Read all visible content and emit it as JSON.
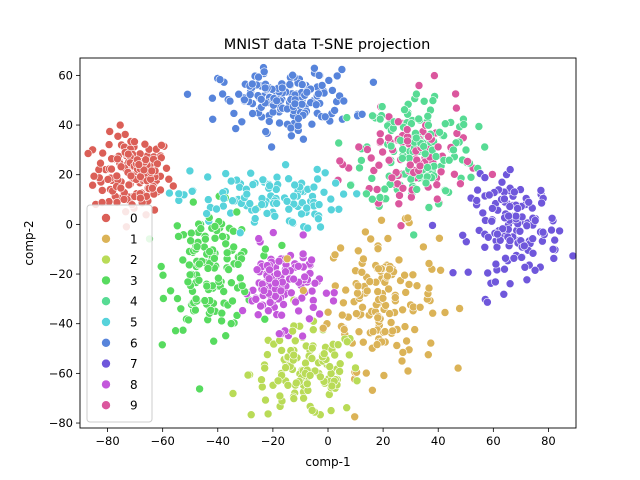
{
  "chart_data": {
    "type": "scatter",
    "title": "MNIST data T-SNE projection",
    "xlabel": "comp-1",
    "ylabel": "comp-2",
    "xlim": [
      -90,
      90
    ],
    "ylim": [
      -82,
      67
    ],
    "xticks": [
      -80,
      -60,
      -40,
      -20,
      0,
      20,
      40,
      60,
      80
    ],
    "yticks": [
      -80,
      -60,
      -40,
      -20,
      0,
      20,
      40,
      60
    ],
    "grid": false,
    "legend": {
      "location": "lower-left",
      "entries": [
        {
          "label": "0",
          "color": "#db5f57"
        },
        {
          "label": "1",
          "color": "#dbb357"
        },
        {
          "label": "2",
          "color": "#b9db57"
        },
        {
          "label": "3",
          "color": "#57db5f"
        },
        {
          "label": "4",
          "color": "#57db94"
        },
        {
          "label": "5",
          "color": "#57d3db"
        },
        {
          "label": "6",
          "color": "#5784db"
        },
        {
          "label": "7",
          "color": "#6f57db"
        },
        {
          "label": "8",
          "color": "#c357db"
        },
        {
          "label": "9",
          "color": "#db579e"
        }
      ]
    },
    "clusters": [
      {
        "label": "0",
        "center": [
          -71,
          20
        ],
        "spread": [
          7,
          8
        ],
        "count": 150
      },
      {
        "label": "1",
        "center": [
          20,
          -30
        ],
        "spread": [
          10,
          14
        ],
        "count": 150
      },
      {
        "label": "2",
        "center": [
          -8,
          -60
        ],
        "spread": [
          10,
          9
        ],
        "count": 130
      },
      {
        "label": "3",
        "center": [
          -42,
          -18
        ],
        "spread": [
          8,
          12
        ],
        "count": 150
      },
      {
        "label": "4",
        "center": [
          33,
          30
        ],
        "spread": [
          10,
          12
        ],
        "count": 150
      },
      {
        "label": "5",
        "center": [
          -25,
          10
        ],
        "spread": [
          15,
          6
        ],
        "count": 110
      },
      {
        "label": "6",
        "center": [
          -15,
          50
        ],
        "spread": [
          12,
          6
        ],
        "count": 170
      },
      {
        "label": "7",
        "center": [
          68,
          -2
        ],
        "spread": [
          8,
          10
        ],
        "count": 140
      },
      {
        "label": "8",
        "center": [
          -17,
          -25
        ],
        "spread": [
          7,
          8
        ],
        "count": 120
      },
      {
        "label": "9",
        "center": [
          30,
          25
        ],
        "spread": [
          10,
          12
        ],
        "count": 100
      }
    ]
  }
}
